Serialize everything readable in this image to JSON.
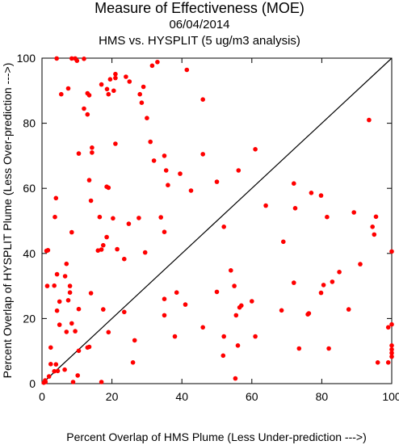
{
  "chart_data": {
    "type": "scatter",
    "title": "Measure of Effectiveness (MOE)",
    "subtitle": "06/04/2014",
    "subtitle2": "HMS vs. HYSPLIT  (5 ug/m3 analysis)",
    "xlabel": "Percent Overlap of HMS Plume (Less Under-prediction --->)",
    "ylabel": "Percent Overlap of HYSPLIT Plume (Less Over-prediction --->)",
    "xlim": [
      0,
      100
    ],
    "ylim": [
      0,
      100
    ],
    "xticks": [
      0,
      20,
      40,
      60,
      80,
      100
    ],
    "yticks": [
      0,
      20,
      40,
      60,
      80,
      100
    ],
    "reference_line": "diagonal y = x",
    "marker_color": "#ff0000",
    "points": [
      [
        4.2,
        99.9
      ],
      [
        8.5,
        99.9
      ],
      [
        9.5,
        99.9
      ],
      [
        12.0,
        99.8
      ],
      [
        10.0,
        99.2
      ],
      [
        31.5,
        97.7
      ],
      [
        33.0,
        98.8
      ],
      [
        41.4,
        96.4
      ],
      [
        21.0,
        95.1
      ],
      [
        21.0,
        93.9
      ],
      [
        24.0,
        94.3
      ],
      [
        17.0,
        91.9
      ],
      [
        19.5,
        93.5
      ],
      [
        25.0,
        92.8
      ],
      [
        29.0,
        91.2
      ],
      [
        20.5,
        90.0
      ],
      [
        7.5,
        90.7
      ],
      [
        5.5,
        88.9
      ],
      [
        13.0,
        89.2
      ],
      [
        13.5,
        88.6
      ],
      [
        18.6,
        90.5
      ],
      [
        19.0,
        88.9
      ],
      [
        28.0,
        88.9
      ],
      [
        46.0,
        87.3
      ],
      [
        28.5,
        86.3
      ],
      [
        12.0,
        84.5
      ],
      [
        13.0,
        82.7
      ],
      [
        30.0,
        81.6
      ],
      [
        93.5,
        81.0
      ],
      [
        21.0,
        73.7
      ],
      [
        31.0,
        74.3
      ],
      [
        14.3,
        72.5
      ],
      [
        14.3,
        71.0
      ],
      [
        10.5,
        70.7
      ],
      [
        35.0,
        70.0
      ],
      [
        46.0,
        70.5
      ],
      [
        61.0,
        72.0
      ],
      [
        32.0,
        68.5
      ],
      [
        35.5,
        65.5
      ],
      [
        56.2,
        65.5
      ],
      [
        39.5,
        64.5
      ],
      [
        13.5,
        62.5
      ],
      [
        18.5,
        60.5
      ],
      [
        19.0,
        60.2
      ],
      [
        36.0,
        61.0
      ],
      [
        50.0,
        62.0
      ],
      [
        42.6,
        59.3
      ],
      [
        77.0,
        58.6
      ],
      [
        79.8,
        57.8
      ],
      [
        4.0,
        57.0
      ],
      [
        14.0,
        56.2
      ],
      [
        64.0,
        54.7
      ],
      [
        72.4,
        53.9
      ],
      [
        89.2,
        52.6
      ],
      [
        72.0,
        61.5
      ],
      [
        3.7,
        51.2
      ],
      [
        16.5,
        51.2
      ],
      [
        20.3,
        50.8
      ],
      [
        27.7,
        50.9
      ],
      [
        24.8,
        49.1
      ],
      [
        34.0,
        51.1
      ],
      [
        81.5,
        51.2
      ],
      [
        95.5,
        51.3
      ],
      [
        94.5,
        48.2
      ],
      [
        52.0,
        48.2
      ],
      [
        8.5,
        46.5
      ],
      [
        35.0,
        46.6
      ],
      [
        95.0,
        45.8
      ],
      [
        69.0,
        43.6
      ],
      [
        18.5,
        45.0
      ],
      [
        1.3,
        40.8
      ],
      [
        1.7,
        41.0
      ],
      [
        16.0,
        40.9
      ],
      [
        17.0,
        41.2
      ],
      [
        17.5,
        42.5
      ],
      [
        21.5,
        41.3
      ],
      [
        29.5,
        40.3
      ],
      [
        100.0,
        40.6
      ],
      [
        23.5,
        38.3
      ],
      [
        7.0,
        36.8
      ],
      [
        91.0,
        36.7
      ],
      [
        4.3,
        33.6
      ],
      [
        6.6,
        33.0
      ],
      [
        85.0,
        34.3
      ],
      [
        54.0,
        34.8
      ],
      [
        83.0,
        31.3
      ],
      [
        1.5,
        30.0
      ],
      [
        3.5,
        30.1
      ],
      [
        8.0,
        30.0
      ],
      [
        55.0,
        30.0
      ],
      [
        72.0,
        31.0
      ],
      [
        8.0,
        28.0
      ],
      [
        14.0,
        27.8
      ],
      [
        38.5,
        28.0
      ],
      [
        50.0,
        28.2
      ],
      [
        79.8,
        27.9
      ],
      [
        80.5,
        30.3
      ],
      [
        5.0,
        25.2
      ],
      [
        7.5,
        25.6
      ],
      [
        35.0,
        26.0
      ],
      [
        57.0,
        24.0
      ],
      [
        60.0,
        25.3
      ],
      [
        41.0,
        24.3
      ],
      [
        4.3,
        22.4
      ],
      [
        10.5,
        22.9
      ],
      [
        17.5,
        22.8
      ],
      [
        23.5,
        22.0
      ],
      [
        56.5,
        23.4
      ],
      [
        68.5,
        22.5
      ],
      [
        76.0,
        21.3
      ],
      [
        76.3,
        21.6
      ],
      [
        87.7,
        22.8
      ],
      [
        35.0,
        21.0
      ],
      [
        55.5,
        21.0
      ],
      [
        5.0,
        18.1
      ],
      [
        8.5,
        18.5
      ],
      [
        46.0,
        17.3
      ],
      [
        99.0,
        17.3
      ],
      [
        100.0,
        18.2
      ],
      [
        7.0,
        15.9
      ],
      [
        9.5,
        16.1
      ],
      [
        19.0,
        15.8
      ],
      [
        38.0,
        14.5
      ],
      [
        52.0,
        14.5
      ],
      [
        61.0,
        14.5
      ],
      [
        26.5,
        13.3
      ],
      [
        2.5,
        11.1
      ],
      [
        13.0,
        11.1
      ],
      [
        13.5,
        11.3
      ],
      [
        56.0,
        11.7
      ],
      [
        73.5,
        10.8
      ],
      [
        82.0,
        10.8
      ],
      [
        100.0,
        11.7
      ],
      [
        10.5,
        10.1
      ],
      [
        51.8,
        8.6
      ],
      [
        100.0,
        10.5
      ],
      [
        100.0,
        9.4
      ],
      [
        100.0,
        8.3
      ],
      [
        2.5,
        6.0
      ],
      [
        4.0,
        5.9
      ],
      [
        26.0,
        6.5
      ],
      [
        96.0,
        6.5
      ],
      [
        99.0,
        6.5
      ],
      [
        3.5,
        3.8
      ],
      [
        4.5,
        3.9
      ],
      [
        6.5,
        4.3
      ],
      [
        10.2,
        2.5
      ],
      [
        2.0,
        2.2
      ],
      [
        0.9,
        1.0
      ],
      [
        1.0,
        0.5
      ],
      [
        0.5,
        0.3
      ],
      [
        8.9,
        0.5
      ],
      [
        17.0,
        0.5
      ],
      [
        55.3,
        1.6
      ]
    ]
  }
}
